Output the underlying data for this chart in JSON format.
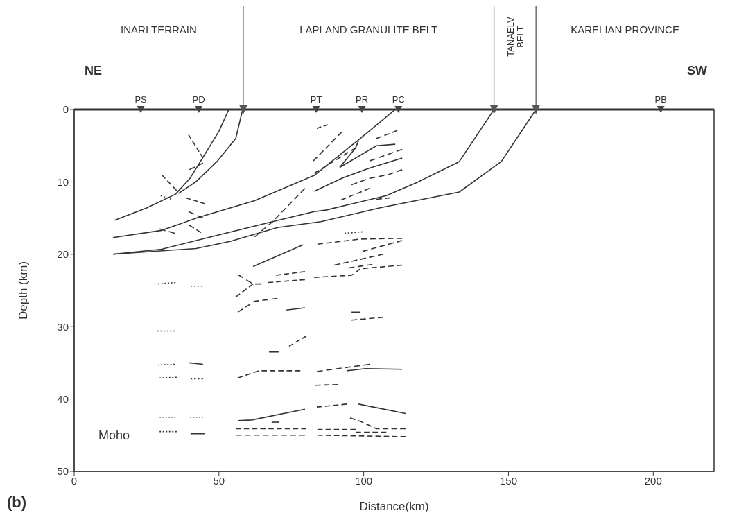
{
  "chart_data": {
    "type": "line",
    "xlabel": "Distance(km)",
    "ylabel": "Depth (km)",
    "xlim": [
      0,
      221
    ],
    "ylim": [
      50,
      0
    ],
    "xticks": [
      0,
      50,
      100,
      150,
      200
    ],
    "yticks": [
      0,
      10,
      20,
      30,
      40,
      50
    ],
    "annotations": [
      "INARI TERRAIN",
      "LAPLAND GRANULITE BELT",
      "TANAELV BELT",
      "KARELIAN PROVINCE",
      "NE",
      "SW",
      "Moho",
      "(b)"
    ],
    "series": [
      {
        "type": "scatter",
        "marker": "triangle",
        "color": "#555555",
        "x": [
          58.4,
          145,
          159.5
        ],
        "values": [
          0,
          0,
          0
        ]
      },
      {
        "type": "scatter",
        "marker": "triangle",
        "color": "#444444",
        "x": [
          23,
          43,
          83.6,
          99.4,
          112,
          202.6
        ],
        "values": [
          0,
          0,
          0,
          0,
          0,
          0
        ],
        "value_labels": [
          "PS",
          "PD",
          "PT",
          "PR",
          "PC",
          "PB"
        ]
      },
      {
        "color": "#333333",
        "line_style": "solid",
        "x": [
          53.4,
          50,
          44.5,
          40,
          35,
          25,
          14
        ],
        "values": [
          0,
          3,
          6.6,
          9.5,
          11.7,
          13.6,
          15.3
        ]
      },
      {
        "color": "#333333",
        "line_style": "solid",
        "x": [
          58.2,
          55.8,
          49.3,
          42,
          36
        ],
        "values": [
          0,
          4,
          7.2,
          10,
          11.6
        ]
      },
      {
        "color": "#333333",
        "line_style": "solid",
        "x": [
          110.9,
          98.2,
          82.9,
          62.3,
          43,
          30.2,
          13.4
        ],
        "values": [
          0,
          4.2,
          9.1,
          12.6,
          14.9,
          16.7,
          17.7
        ]
      },
      {
        "color": "#333333",
        "line_style": "solid",
        "x": [
          145,
          133,
          118.8,
          107.8,
          86.9,
          82.9,
          68.5,
          46.2,
          30.2,
          13.4
        ],
        "values": [
          0,
          7.2,
          10,
          11.9,
          13.9,
          14.1,
          15.5,
          17.7,
          19.3,
          20
        ]
      },
      {
        "color": "#333333",
        "line_style": "solid",
        "x": [
          159.5,
          147.5,
          133,
          105.4,
          85.2,
          70.2,
          54.1,
          42.1,
          13.4
        ],
        "values": [
          0,
          7.2,
          11.4,
          13.6,
          15.5,
          16.3,
          18.2,
          19.2,
          20
        ]
      },
      {
        "color": "#333333",
        "line_style": "dashed",
        "x": [
          39.5,
          44.5
        ],
        "values": [
          3.5,
          6.7
        ]
      },
      {
        "color": "#333333",
        "line_style": "dashed",
        "x": [
          39.8,
          44.5
        ],
        "values": [
          8.3,
          7.4
        ]
      },
      {
        "color": "#333333",
        "line_style": "dashed",
        "x": [
          30.2,
          35.4
        ],
        "values": [
          9,
          11.2
        ]
      },
      {
        "color": "#333333",
        "line_style": "dotted",
        "x": [
          29.9,
          33.5
        ],
        "values": [
          11.9,
          12.4
        ]
      },
      {
        "color": "#333333",
        "line_style": "dashed",
        "x": [
          38.6,
          45
        ],
        "values": [
          12.2,
          13
        ]
      },
      {
        "color": "#333333",
        "line_style": "dashed",
        "x": [
          39.5,
          44.5
        ],
        "values": [
          14.1,
          15
        ]
      },
      {
        "color": "#333333",
        "line_style": "dashed",
        "x": [
          29.5,
          34.7
        ],
        "values": [
          16.5,
          17.1
        ]
      },
      {
        "color": "#333333",
        "line_style": "dashed",
        "x": [
          39.8,
          43.8
        ],
        "values": [
          16,
          17
        ]
      },
      {
        "color": "#333333",
        "line_style": "dashed",
        "x": [
          83.8,
          87.6
        ],
        "values": [
          2.6,
          2.1
        ]
      },
      {
        "color": "#333333",
        "line_style": "dashed",
        "x": [
          82.6,
          92.4
        ],
        "values": [
          7.1,
          3.1
        ]
      },
      {
        "color": "#333333",
        "line_style": "dashed",
        "x": [
          79.7,
          68.5,
          62.3
        ],
        "values": [
          10.9,
          15.5,
          17.6
        ]
      },
      {
        "color": "#333333",
        "line_style": "dashed",
        "x": [
          82.9,
          97.2
        ],
        "values": [
          8.8,
          5.3
        ]
      },
      {
        "color": "#333333",
        "line_style": "solid",
        "x": [
          91.7,
          97.2,
          98.2
        ],
        "values": [
          8,
          5.3,
          4.3
        ]
      },
      {
        "color": "#333333",
        "line_style": "solid",
        "x": [
          91.7,
          104.4,
          110.9
        ],
        "values": [
          8,
          5,
          4.8
        ]
      },
      {
        "color": "#333333",
        "line_style": "dashed",
        "x": [
          104.4,
          111.6
        ],
        "values": [
          4,
          2.9
        ]
      },
      {
        "color": "#333333",
        "line_style": "dashed",
        "x": [
          102,
          113.3
        ],
        "values": [
          7.1,
          5.5
        ]
      },
      {
        "color": "#333333",
        "line_style": "solid",
        "x": [
          82.9,
          92.4,
          102,
          113.3
        ],
        "values": [
          11.3,
          9.5,
          8.1,
          6.7
        ]
      },
      {
        "color": "#333333",
        "line_style": "dashed",
        "x": [
          95.8,
          102,
          108.5,
          113.3
        ],
        "values": [
          10.4,
          9.5,
          9,
          8.3
        ]
      },
      {
        "color": "#333333",
        "line_style": "dashed",
        "x": [
          92.2,
          102
        ],
        "values": [
          12.5,
          10.9
        ]
      },
      {
        "color": "#333333",
        "line_style": "dashed",
        "x": [
          104.4,
          109.2
        ],
        "values": [
          12.4,
          12.2
        ]
      },
      {
        "color": "#333333",
        "line_style": "dotted",
        "x": [
          93.4,
          99.6
        ],
        "values": [
          17.1,
          16.9
        ]
      },
      {
        "color": "#333333",
        "line_style": "dashed",
        "x": [
          84,
          98.9,
          113.3
        ],
        "values": [
          18.6,
          17.9,
          17.8
        ]
      },
      {
        "color": "#333333",
        "line_style": "dashed",
        "x": [
          99.6,
          113.3
        ],
        "values": [
          19.6,
          18.1
        ]
      },
      {
        "color": "#333333",
        "line_style": "dashed",
        "x": [
          89.8,
          106.8
        ],
        "values": [
          21.5,
          20
        ]
      },
      {
        "color": "#333333",
        "line_style": "dashed",
        "x": [
          94.8,
          103
        ],
        "values": [
          21.9,
          21.4
        ]
      },
      {
        "color": "#333333",
        "line_style": "dashed",
        "x": [
          82.9,
          95.8,
          98.9,
          113.3
        ],
        "values": [
          23.2,
          22.9,
          22,
          21.5
        ]
      },
      {
        "color": "#333333",
        "line_style": "solid",
        "x": [
          61.8,
          79
        ],
        "values": [
          21.7,
          18.7
        ]
      },
      {
        "color": "#333333",
        "line_style": "dashed",
        "x": [
          69.7,
          79.7
        ],
        "values": [
          22.9,
          22.4
        ]
      },
      {
        "color": "#333333",
        "line_style": "dashed",
        "x": [
          56.5,
          61.8,
          64.7
        ],
        "values": [
          22.8,
          24.1,
          24.1
        ]
      },
      {
        "color": "#333333",
        "line_style": "dashed",
        "x": [
          67,
          79.7
        ],
        "values": [
          23.9,
          23.5
        ]
      },
      {
        "color": "#333333",
        "line_style": "dashed",
        "x": [
          55.8,
          61.8
        ],
        "values": [
          25.9,
          24.1
        ]
      },
      {
        "color": "#333333",
        "line_style": "dashed",
        "x": [
          56.5,
          62.3,
          70.2
        ],
        "values": [
          28,
          26.5,
          26.1
        ]
      },
      {
        "color": "#333333",
        "line_style": "solid",
        "x": [
          73.3,
          79.7
        ],
        "values": [
          27.7,
          27.4
        ]
      },
      {
        "color": "#333333",
        "line_style": "solid",
        "x": [
          95.8,
          98.9
        ],
        "values": [
          28,
          28
        ]
      },
      {
        "color": "#333333",
        "line_style": "dashed",
        "x": [
          95.8,
          106.8
        ],
        "values": [
          29.1,
          28.7
        ]
      },
      {
        "color": "#333333",
        "line_style": "solid",
        "x": [
          67.3,
          70.6
        ],
        "values": [
          33.5,
          33.5
        ]
      },
      {
        "color": "#333333",
        "line_style": "dashed",
        "x": [
          74.2,
          80.2
        ],
        "values": [
          32.7,
          31.3
        ]
      },
      {
        "color": "#333333",
        "line_style": "dashed",
        "x": [
          56.5,
          63.7,
          78.1
        ],
        "values": [
          37.1,
          36.1,
          36.1
        ]
      },
      {
        "color": "#333333",
        "line_style": "dashed",
        "x": [
          83.8,
          102
        ],
        "values": [
          36.2,
          35.2
        ]
      },
      {
        "color": "#333333",
        "line_style": "solid",
        "x": [
          94.1,
          100.6,
          113.3
        ],
        "values": [
          36.1,
          35.8,
          35.9
        ]
      },
      {
        "color": "#333333",
        "line_style": "dashed",
        "x": [
          83.3,
          91
        ],
        "values": [
          38.1,
          38
        ]
      },
      {
        "color": "#333333",
        "line_style": "solid",
        "x": [
          56.5,
          61.3,
          79.7
        ],
        "values": [
          43,
          42.9,
          41.4
        ]
      },
      {
        "color": "#333333",
        "line_style": "solid",
        "x": [
          68.2,
          70.9
        ],
        "values": [
          43.2,
          43.2
        ]
      },
      {
        "color": "#333333",
        "line_style": "dashed",
        "x": [
          83.8,
          94.1
        ],
        "values": [
          41.1,
          40.7
        ]
      },
      {
        "color": "#333333",
        "line_style": "solid",
        "x": [
          98.2,
          114.5
        ],
        "values": [
          40.7,
          42
        ]
      },
      {
        "color": "#333333",
        "line_style": "dashed",
        "x": [
          95.3,
          98.9,
          104.4,
          114.5
        ],
        "values": [
          42.6,
          43.1,
          44.1,
          44.1
        ]
      },
      {
        "color": "#333333",
        "line_style": "dashed",
        "x": [
          55.8,
          80.2
        ],
        "values": [
          44.1,
          44.1
        ]
      },
      {
        "color": "#333333",
        "line_style": "dashed",
        "x": [
          55.8,
          79.7
        ],
        "values": [
          45,
          45
        ]
      },
      {
        "color": "#333333",
        "line_style": "dashed",
        "x": [
          84,
          97.2
        ],
        "values": [
          44.2,
          44.2
        ]
      },
      {
        "color": "#333333",
        "line_style": "dashed",
        "x": [
          84,
          114.5
        ],
        "values": [
          45,
          45.2
        ]
      },
      {
        "color": "#333333",
        "line_style": "dashed",
        "x": [
          97.2,
          107.8
        ],
        "values": [
          44.6,
          44.6
        ]
      },
      {
        "color": "#333333",
        "line_style": "dotted",
        "x": [
          29,
          35
        ],
        "values": [
          24.1,
          23.9
        ]
      },
      {
        "color": "#333333",
        "line_style": "dotted",
        "x": [
          40.2,
          44.3
        ],
        "values": [
          24.4,
          24.4
        ]
      },
      {
        "color": "#333333",
        "line_style": "dotted",
        "x": [
          28.7,
          34.7
        ],
        "values": [
          30.6,
          30.6
        ]
      },
      {
        "color": "#333333",
        "line_style": "dotted",
        "x": [
          29,
          34.7
        ],
        "values": [
          35.3,
          35.2
        ]
      },
      {
        "color": "#333333",
        "line_style": "solid",
        "x": [
          39.8,
          44.5
        ],
        "values": [
          35,
          35.2
        ]
      },
      {
        "color": "#333333",
        "line_style": "dotted",
        "x": [
          29.5,
          35.4
        ],
        "values": [
          37.1,
          37
        ]
      },
      {
        "color": "#333333",
        "line_style": "dotted",
        "x": [
          40.2,
          44.5
        ],
        "values": [
          37.2,
          37.2
        ]
      },
      {
        "color": "#333333",
        "line_style": "dotted",
        "x": [
          29.5,
          35
        ],
        "values": [
          42.5,
          42.5
        ]
      },
      {
        "color": "#333333",
        "line_style": "dotted",
        "x": [
          40,
          44.5
        ],
        "values": [
          42.5,
          42.5
        ]
      },
      {
        "color": "#333333",
        "line_style": "dotted",
        "x": [
          29.5,
          35.4
        ],
        "values": [
          44.5,
          44.5
        ]
      },
      {
        "color": "#333333",
        "line_style": "solid",
        "x": [
          40.2,
          45
        ],
        "values": [
          44.8,
          44.8
        ]
      }
    ]
  }
}
